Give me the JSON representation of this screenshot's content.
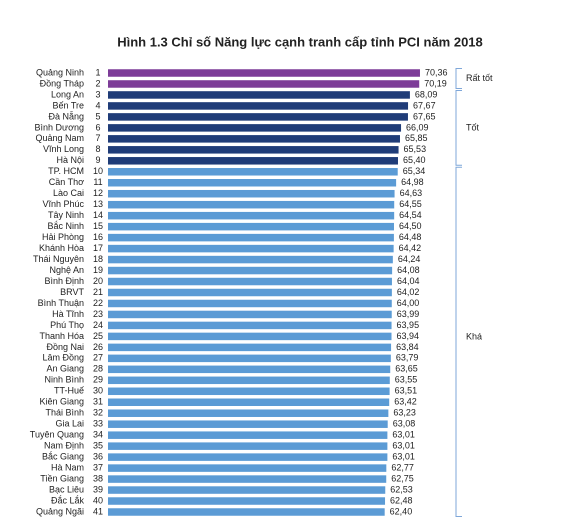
{
  "chart_data": {
    "type": "bar",
    "title": "Hình 1.3 Chỉ số Năng lực cạnh tranh cấp tỉnh PCI năm 2018",
    "series": [
      {
        "name": "Rất tốt",
        "color": "#7d3c98",
        "categories": [
          "Quảng Ninh",
          "Đồng Tháp"
        ],
        "ranks": [
          1,
          2
        ],
        "values": [
          70.36,
          70.19
        ],
        "value_labels": [
          "70,36",
          "70,19"
        ]
      },
      {
        "name": "Tốt",
        "color": "#1f3c78",
        "categories": [
          "Long An",
          "Bến Tre",
          "Đà Nẵng",
          "Bình Dương",
          "Quảng Nam",
          "Vĩnh Long",
          "Hà Nội"
        ],
        "ranks": [
          3,
          4,
          5,
          6,
          7,
          8,
          9
        ],
        "values": [
          68.09,
          67.67,
          67.65,
          66.09,
          65.85,
          65.53,
          65.4
        ],
        "value_labels": [
          "68,09",
          "67,67",
          "67,65",
          "66,09",
          "65,85",
          "65,53",
          "65,40"
        ]
      },
      {
        "name": "Khá",
        "color": "#5b9bd5",
        "categories": [
          "TP. HCM",
          "Cần Thơ",
          "Lào Cai",
          "Vĩnh Phúc",
          "Tây Ninh",
          "Bắc Ninh",
          "Hải Phòng",
          "Khánh Hòa",
          "Thái Nguyên",
          "Nghệ An",
          "Bình Định",
          "BRVT",
          "Bình Thuận",
          "Hà Tĩnh",
          "Phú Thọ",
          "Thanh Hóa",
          "Đồng Nai",
          "Lâm Đồng",
          "An Giang",
          "Ninh Bình",
          "TT-Huế",
          "Kiên Giang",
          "Thái Bình",
          "Gia Lai",
          "Tuyên Quang",
          "Nam Định",
          "Bắc Giang",
          "Hà Nam",
          "Tiền Giang",
          "Bạc Liêu",
          "Đắc Lắk",
          "Quảng Ngãi"
        ],
        "ranks": [
          10,
          11,
          12,
          13,
          14,
          15,
          16,
          17,
          18,
          19,
          20,
          21,
          22,
          23,
          24,
          25,
          26,
          27,
          28,
          29,
          30,
          31,
          32,
          33,
          34,
          35,
          36,
          37,
          38,
          39,
          40,
          41
        ],
        "values": [
          65.34,
          64.98,
          64.63,
          64.55,
          64.54,
          64.5,
          64.48,
          64.42,
          64.24,
          64.08,
          64.04,
          64.02,
          64.0,
          63.99,
          63.95,
          63.94,
          63.84,
          63.79,
          63.65,
          63.55,
          63.51,
          63.42,
          63.23,
          63.08,
          63.01,
          63.01,
          63.01,
          62.77,
          62.75,
          62.53,
          62.48,
          62.4
        ],
        "value_labels": [
          "65,34",
          "64,98",
          "64,63",
          "64,55",
          "64,54",
          "64,50",
          "64,48",
          "64,42",
          "64,24",
          "64,08",
          "64,04",
          "64,02",
          "64,00",
          "63,99",
          "63,95",
          "63,94",
          "63,84",
          "63,79",
          "63,65",
          "63,55",
          "63,51",
          "63,42",
          "63,23",
          "63,08",
          "63,01",
          "63,01",
          "63,01",
          "62,77",
          "62,75",
          "62,53",
          "62,48",
          "62,40"
        ]
      }
    ]
  }
}
